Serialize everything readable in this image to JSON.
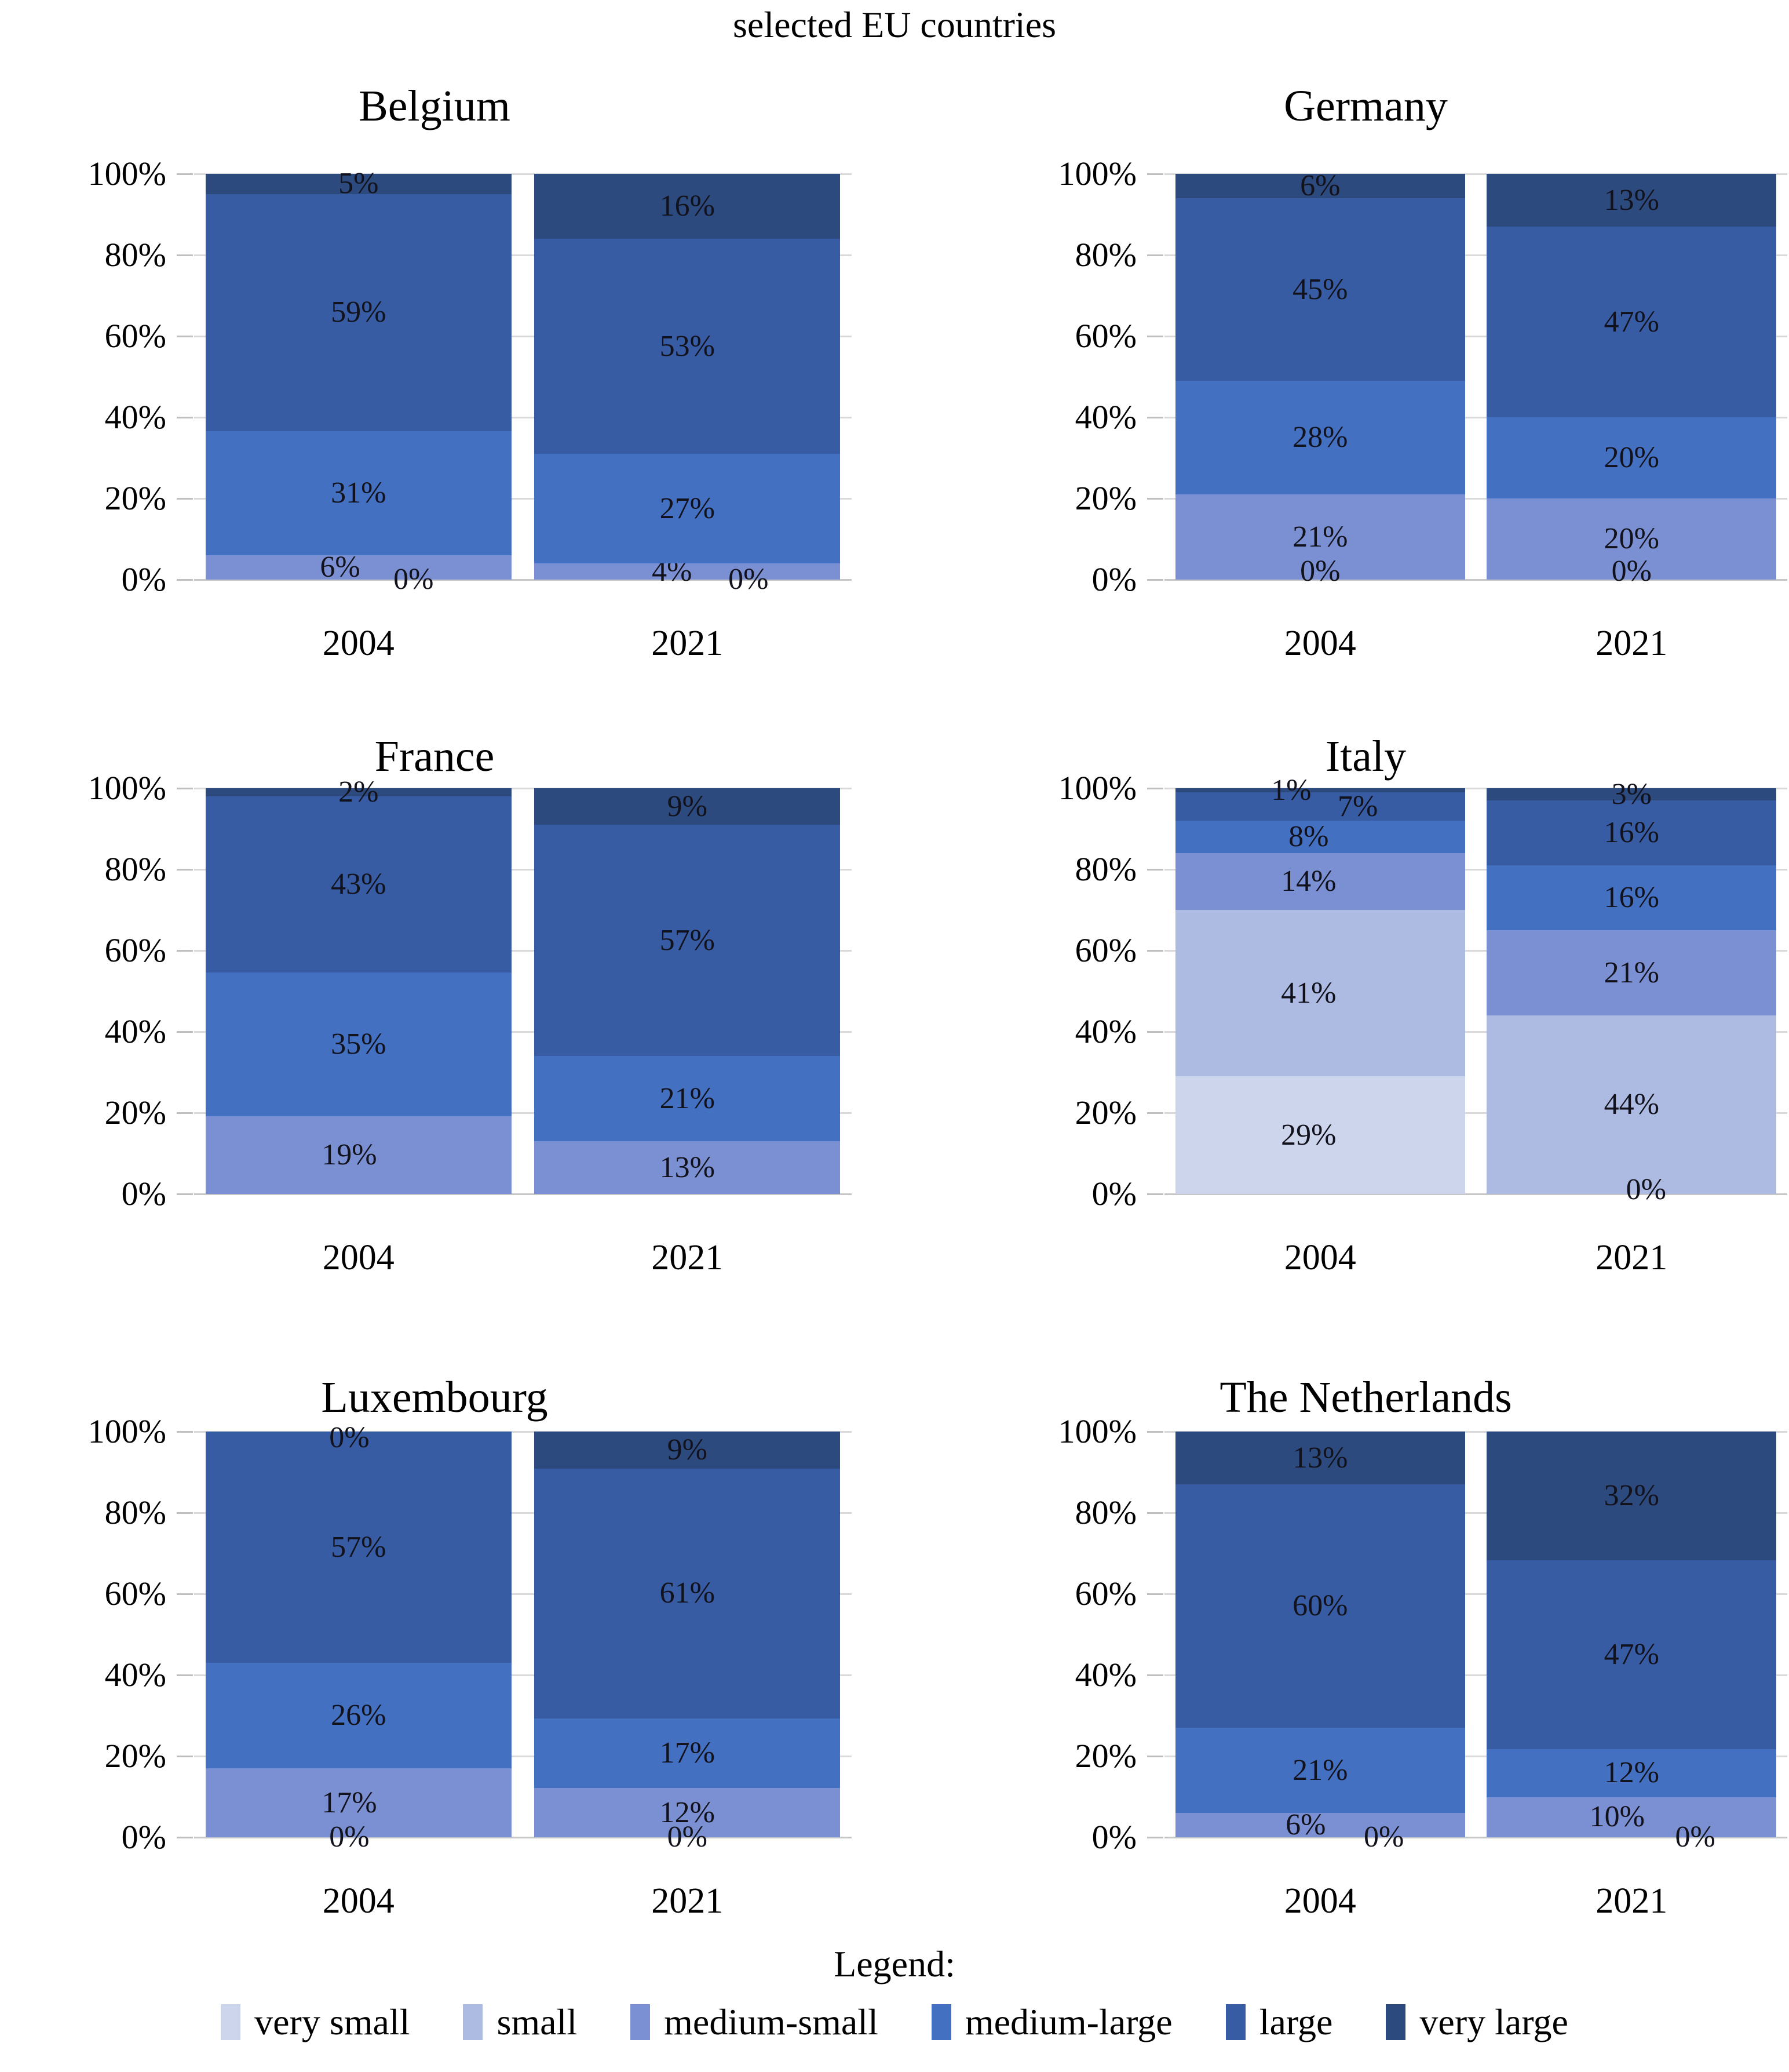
{
  "figure": {
    "title": "selected EU countries"
  },
  "axis": {
    "y_ticks": [
      "100%",
      "80%",
      "60%",
      "40%",
      "20%",
      "0%"
    ],
    "x_categories": [
      "2004",
      "2021"
    ],
    "ylim": [
      0,
      100
    ],
    "grid": true
  },
  "palette": {
    "very small": "#cdd5ec",
    "small": "#adbae2",
    "medium-small": "#7b90d2",
    "medium-large": "#4470c2",
    "large": "#375ca4",
    "very large": "#2c4a7e"
  },
  "legend": {
    "title": "Legend:",
    "items": [
      "very small",
      "small",
      "medium-small",
      "medium-large",
      "large",
      "very large"
    ]
  },
  "chart_data": [
    {
      "type": "bar",
      "stacked": true,
      "title": "Belgium",
      "categories": [
        "2004",
        "2021"
      ],
      "ylim": [
        0,
        100
      ],
      "bars": [
        {
          "year": "2004",
          "segments": [
            {
              "category": "medium-small",
              "value": 6,
              "label_x": 0.44
            },
            {
              "category": "medium-large",
              "value": 31
            },
            {
              "category": "large",
              "value": 59
            },
            {
              "category": "very large",
              "value": 5
            }
          ],
          "float_labels": [
            {
              "text": "0%",
              "x": 0.68,
              "y": 0
            }
          ]
        },
        {
          "year": "2021",
          "segments": [
            {
              "category": "medium-small",
              "value": 4,
              "label_x": 0.45
            },
            {
              "category": "medium-large",
              "value": 27
            },
            {
              "category": "large",
              "value": 53
            },
            {
              "category": "very large",
              "value": 16
            }
          ],
          "float_labels": [
            {
              "text": "0%",
              "x": 0.7,
              "y": 0
            }
          ]
        }
      ]
    },
    {
      "type": "bar",
      "stacked": true,
      "title": "Germany",
      "categories": [
        "2004",
        "2021"
      ],
      "ylim": [
        0,
        100
      ],
      "bars": [
        {
          "year": "2004",
          "segments": [
            {
              "category": "medium-small",
              "value": 21
            },
            {
              "category": "medium-large",
              "value": 28
            },
            {
              "category": "large",
              "value": 45
            },
            {
              "category": "very large",
              "value": 6
            }
          ],
          "float_labels": [
            {
              "text": "0%",
              "x": 0.5,
              "y": 2
            }
          ]
        },
        {
          "year": "2021",
          "segments": [
            {
              "category": "medium-small",
              "value": 20
            },
            {
              "category": "medium-large",
              "value": 20
            },
            {
              "category": "large",
              "value": 47
            },
            {
              "category": "very large",
              "value": 13
            }
          ],
          "float_labels": [
            {
              "text": "0%",
              "x": 0.5,
              "y": 2
            }
          ]
        }
      ]
    },
    {
      "type": "bar",
      "stacked": true,
      "title": "France",
      "categories": [
        "2004",
        "2021"
      ],
      "ylim": [
        0,
        100
      ],
      "bars": [
        {
          "year": "2004",
          "segments": [
            {
              "category": "medium-small",
              "value": 19,
              "label_x": 0.47
            },
            {
              "category": "medium-large",
              "value": 35
            },
            {
              "category": "large",
              "value": 43
            },
            {
              "category": "very large",
              "value": 2
            }
          ],
          "float_labels": []
        },
        {
          "year": "2021",
          "segments": [
            {
              "category": "medium-small",
              "value": 13
            },
            {
              "category": "medium-large",
              "value": 21
            },
            {
              "category": "large",
              "value": 57
            },
            {
              "category": "very large",
              "value": 9
            }
          ],
          "float_labels": []
        }
      ]
    },
    {
      "type": "bar",
      "stacked": true,
      "title": "Italy",
      "categories": [
        "2004",
        "2021"
      ],
      "ylim": [
        0,
        100
      ],
      "bars": [
        {
          "year": "2004",
          "segments": [
            {
              "category": "very small",
              "value": 29,
              "label_x": 0.46
            },
            {
              "category": "small",
              "value": 41,
              "label_x": 0.46
            },
            {
              "category": "medium-small",
              "value": 14,
              "label_x": 0.46
            },
            {
              "category": "medium-large",
              "value": 8,
              "label_x": 0.46
            },
            {
              "category": "large",
              "value": 7,
              "label_x": 0.63
            },
            {
              "category": "very large",
              "value": 1,
              "label_x": 0.4
            }
          ],
          "float_labels": []
        },
        {
          "year": "2021",
          "segments": [
            {
              "category": "small",
              "value": 44
            },
            {
              "category": "medium-small",
              "value": 21
            },
            {
              "category": "medium-large",
              "value": 16
            },
            {
              "category": "large",
              "value": 16
            },
            {
              "category": "very large",
              "value": 3
            }
          ],
          "float_labels": [
            {
              "text": "0%",
              "x": 0.55,
              "y": 1
            }
          ]
        }
      ]
    },
    {
      "type": "bar",
      "stacked": true,
      "title": "Luxembourg",
      "categories": [
        "2004",
        "2021"
      ],
      "ylim": [
        0,
        100
      ],
      "bars": [
        {
          "year": "2004",
          "segments": [
            {
              "category": "medium-small",
              "value": 17,
              "label_x": 0.47
            },
            {
              "category": "medium-large",
              "value": 26
            },
            {
              "category": "large",
              "value": 57
            }
          ],
          "float_labels": [
            {
              "text": "0%",
              "x": 0.47,
              "y": 98.5
            },
            {
              "text": "0%",
              "x": 0.47,
              "y": 0
            }
          ]
        },
        {
          "year": "2021",
          "segments": [
            {
              "category": "medium-small",
              "value": 12
            },
            {
              "category": "medium-large",
              "value": 17
            },
            {
              "category": "large",
              "value": 61
            },
            {
              "category": "very large",
              "value": 9
            }
          ],
          "float_labels": [
            {
              "text": "0%",
              "x": 0.5,
              "y": 0
            }
          ]
        }
      ]
    },
    {
      "type": "bar",
      "stacked": true,
      "title": "The Netherlands",
      "categories": [
        "2004",
        "2021"
      ],
      "ylim": [
        0,
        100
      ],
      "bars": [
        {
          "year": "2004",
          "segments": [
            {
              "category": "medium-small",
              "value": 6,
              "label_x": 0.45
            },
            {
              "category": "medium-large",
              "value": 21
            },
            {
              "category": "large",
              "value": 60
            },
            {
              "category": "very large",
              "value": 13
            }
          ],
          "float_labels": [
            {
              "text": "0%",
              "x": 0.72,
              "y": 0
            }
          ]
        },
        {
          "year": "2021",
          "segments": [
            {
              "category": "medium-small",
              "value": 10,
              "label_x": 0.45
            },
            {
              "category": "medium-large",
              "value": 12
            },
            {
              "category": "large",
              "value": 47
            },
            {
              "category": "very large",
              "value": 32
            }
          ],
          "float_labels": [
            {
              "text": "0%",
              "x": 0.72,
              "y": 0
            }
          ]
        }
      ]
    }
  ]
}
